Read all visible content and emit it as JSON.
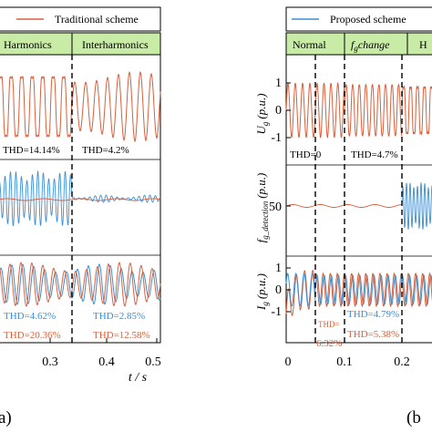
{
  "chart_data": [
    {
      "type": "line",
      "panel_label": "(a)",
      "legend": [
        "Traditional scheme"
      ],
      "segments": [
        "Harmonics",
        "Interharmonics"
      ],
      "x_ticks": [
        "0.3",
        "0.4",
        "0.5"
      ],
      "x_label": "t / s",
      "xlim": [
        0.2,
        0.5
      ],
      "segment_boundaries": [
        0.35
      ],
      "rows": [
        {
          "id": "voltage",
          "series": [
            {
              "color": "#d9603b",
              "segments": [
                {
                  "from": 0.2,
                  "to": 0.35,
                  "amp": 0.85,
                  "distortion": "harmonic"
                },
                {
                  "from": 0.35,
                  "to": 0.5,
                  "amp": 0.85,
                  "distortion": "interharmonic"
                }
              ]
            }
          ],
          "annotations": [
            "THD=14.14%",
            "THD=4.2%"
          ]
        },
        {
          "id": "frequency-detection",
          "series": [
            {
              "color": "#3a8fd6",
              "note": "large oscillation before 0.35 s, small after"
            },
            {
              "color": "#d9603b",
              "note": "flat near nominal"
            }
          ],
          "annotations": []
        },
        {
          "id": "current",
          "series": [
            {
              "color": "#3a8fd6"
            },
            {
              "color": "#d9603b"
            }
          ],
          "annotations": [
            "THD=4.62%",
            "THD=2.85%",
            "THD=20.36%",
            "THD=12.58%"
          ]
        }
      ]
    },
    {
      "type": "line",
      "panel_label": "(b)",
      "legend": [
        "Proposed scheme"
      ],
      "segments": [
        "Normal",
        "f_g change",
        "H"
      ],
      "x_ticks": [
        "0",
        "0.1",
        "0.2"
      ],
      "xlim": [
        0,
        0.24
      ],
      "segment_boundaries": [
        0.05,
        0.1,
        0.2
      ],
      "y_labels": [
        "U_g (p.u.)",
        "f_g_detection (p.u.)",
        "I_g (p.u.)"
      ],
      "y_ticks": [
        [
          "1",
          "0",
          "-1"
        ],
        [
          "50"
        ],
        [
          "1",
          "0",
          "-1"
        ]
      ],
      "ylims": [
        [
          -1.2,
          1.2
        ],
        [
          40,
          60
        ],
        [
          -1.2,
          1.2
        ]
      ],
      "rows": [
        {
          "id": "voltage",
          "annotations": [
            "THD=0",
            "THD=4.7%"
          ]
        },
        {
          "id": "frequency-detection",
          "annotations": []
        },
        {
          "id": "current",
          "annotations": [
            "THD=4.79%",
            "THD=5.38%",
            "THD=",
            "6.32%"
          ]
        }
      ]
    }
  ],
  "text": {
    "legend_a": "Traditional scheme",
    "legend_b": "Proposed scheme",
    "seg_a1": "Harmonics",
    "seg_a2": "Interharmonics",
    "seg_b1": "Normal",
    "seg_b2_f": "f",
    "seg_b2_sub": "g",
    "seg_b2_rest": "change",
    "seg_b3": "H",
    "a_v_thd1": "THD=14.14%",
    "a_v_thd2": "THD=4.2%",
    "a_i_thd1": "THD=4.62%",
    "a_i_thd2": "THD=2.85%",
    "a_i_thd3": "THD=20.36%",
    "a_i_thd4": "THD=12.58%",
    "a_xt1": "0.3",
    "a_xt2": "0.4",
    "a_xt3": "0.5",
    "a_xlabel": "t / s",
    "a_panel": "a)",
    "b_v_thd1": "THD=0",
    "b_v_thd2": "THD=4.7%",
    "b_i_thd1": "THD=4.79%",
    "b_i_thd2": "THD=5.38%",
    "b_i_thd3a": "THD=",
    "b_i_thd3b": "6.32%",
    "b_xt1": "0",
    "b_xt2": "0.1",
    "b_xt3": "0.2",
    "b_panel": "(b",
    "b_yt_v1": "1",
    "b_yt_v0": "0",
    "b_yt_vm1": "-1",
    "b_yt_f50": "50",
    "b_yt_i1": "1",
    "b_yt_i0": "0",
    "b_yt_im1": "-1",
    "b_ylab_u": "U",
    "b_ylab_u_sub": "g",
    "b_ylab_u_unit": "(p.u.)",
    "b_ylab_f": "f",
    "b_ylab_f_sub": "g_detection",
    "b_ylab_f_unit": "(p.u.)",
    "b_ylab_i": "I",
    "b_ylab_i_sub": "g",
    "b_ylab_i_unit": "(p.u.)"
  },
  "colors": {
    "orange": "#d9603b",
    "blue": "#3a8fd6",
    "header_green": "#c8eba6",
    "black": "#000000"
  }
}
